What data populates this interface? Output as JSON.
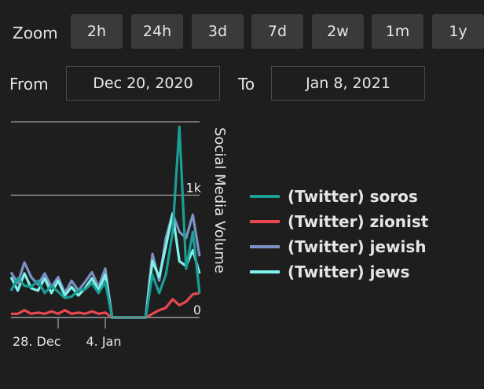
{
  "zoom": {
    "label": "Zoom",
    "buttons": [
      "2h",
      "24h",
      "3d",
      "7d",
      "2w",
      "1m",
      "1y"
    ]
  },
  "range": {
    "from_label": "From",
    "from_value": "Dec 20, 2020",
    "to_label": "To",
    "to_value": "Jan 8, 2021"
  },
  "chart_data": {
    "type": "line",
    "ylabel": "Social Media Volume",
    "ylim": [
      0,
      1600
    ],
    "y_ticks": [
      {
        "value": 0,
        "label": "0"
      },
      {
        "value": 1000,
        "label": "1k"
      }
    ],
    "x_ticks": [
      {
        "index": 7,
        "label": "28. Dec"
      },
      {
        "index": 14,
        "label": "4. Jan"
      }
    ],
    "series": [
      {
        "name": "(Twitter) soros",
        "color": "#1a9e96",
        "values": [
          220,
          320,
          260,
          250,
          300,
          200,
          260,
          210,
          160,
          170,
          220,
          230,
          280,
          200,
          290,
          0,
          0,
          0,
          0,
          0,
          0,
          350,
          200,
          350,
          700,
          1560,
          400,
          700,
          200
        ]
      },
      {
        "name": "(Twitter) zionist",
        "color": "#e8484f",
        "values": [
          30,
          30,
          60,
          30,
          40,
          30,
          50,
          30,
          60,
          30,
          40,
          30,
          50,
          30,
          40,
          0,
          0,
          0,
          0,
          0,
          0,
          30,
          60,
          80,
          150,
          100,
          130,
          190,
          200
        ]
      },
      {
        "name": "(Twitter) jewish",
        "color": "#7c92c4",
        "values": [
          370,
          280,
          450,
          330,
          270,
          360,
          250,
          330,
          200,
          300,
          220,
          290,
          370,
          250,
          400,
          0,
          0,
          0,
          0,
          0,
          0,
          520,
          300,
          650,
          850,
          700,
          650,
          840,
          500
        ]
      },
      {
        "name": "(Twitter) jews",
        "color": "#7ff3ea",
        "values": [
          330,
          220,
          360,
          240,
          220,
          320,
          200,
          300,
          180,
          250,
          180,
          240,
          320,
          220,
          350,
          0,
          0,
          0,
          0,
          0,
          0,
          460,
          330,
          580,
          850,
          460,
          420,
          550,
          360
        ]
      }
    ]
  }
}
